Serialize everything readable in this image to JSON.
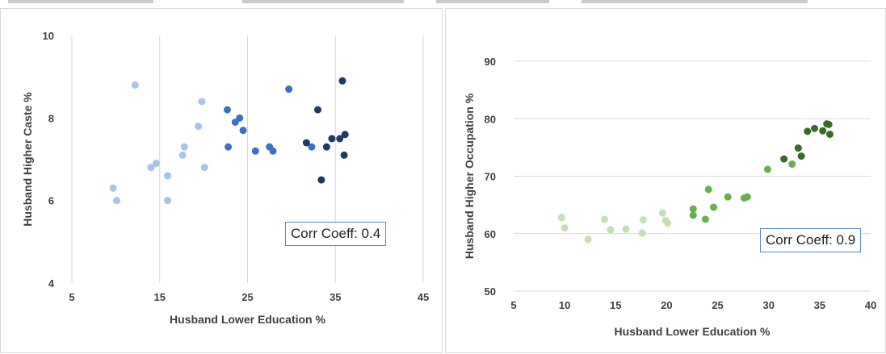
{
  "chart_data": [
    {
      "type": "scatter",
      "xlabel": "Husband Lower Education %",
      "ylabel": "Husband Higher Caste %",
      "xlim": [
        5,
        45
      ],
      "ylim": [
        4,
        10
      ],
      "xticks": [
        "5",
        "15",
        "25",
        "35",
        "45"
      ],
      "yticks": [
        "4",
        "6",
        "8",
        "10"
      ],
      "grid": "vertical",
      "annotation": "Corr Coeff: 0.4",
      "annotation_border": "#5b87c9",
      "series": [
        {
          "color": "#a9c4e9",
          "points": [
            [
              12.2,
              8.8
            ],
            [
              9.7,
              6.3
            ],
            [
              10.1,
              6.0
            ],
            [
              14.0,
              6.8
            ],
            [
              14.6,
              6.9
            ],
            [
              15.9,
              6.6
            ],
            [
              15.9,
              6.0
            ],
            [
              17.6,
              7.1
            ],
            [
              17.8,
              7.3
            ],
            [
              19.4,
              7.8
            ],
            [
              19.8,
              8.4
            ],
            [
              20.1,
              6.8
            ]
          ]
        },
        {
          "color": "#3d70c4",
          "points": [
            [
              22.7,
              8.2
            ],
            [
              22.8,
              7.3
            ],
            [
              23.6,
              7.9
            ],
            [
              24.1,
              8.0
            ],
            [
              24.5,
              7.7
            ],
            [
              25.9,
              7.2
            ],
            [
              27.5,
              7.3
            ],
            [
              27.9,
              7.2
            ],
            [
              29.7,
              8.7
            ],
            [
              32.3,
              7.3
            ]
          ]
        },
        {
          "color": "#1f3864",
          "points": [
            [
              31.7,
              7.4
            ],
            [
              33.0,
              8.2
            ],
            [
              33.4,
              6.5
            ],
            [
              34.0,
              7.3
            ],
            [
              34.6,
              7.5
            ],
            [
              35.5,
              7.5
            ],
            [
              35.8,
              8.9
            ],
            [
              36.0,
              7.1
            ],
            [
              36.1,
              7.6
            ]
          ]
        }
      ]
    },
    {
      "type": "scatter",
      "xlabel": "Husband Lower Education %",
      "ylabel": "Husband Higher Occupation %",
      "xlim": [
        5,
        40
      ],
      "ylim": [
        50,
        90
      ],
      "xticks": [
        "5",
        "10",
        "15",
        "20",
        "25",
        "30",
        "35",
        "40"
      ],
      "yticks": [
        "50",
        "60",
        "70",
        "80",
        "90"
      ],
      "grid": "horizontal",
      "annotation": "Corr Coeff: 0.9",
      "annotation_border": "#5b87c9",
      "series": [
        {
          "color": "#c5e0b3",
          "points": [
            [
              9.7,
              62.8
            ],
            [
              10.0,
              61.0
            ],
            [
              12.3,
              59.0
            ],
            [
              13.9,
              62.5
            ],
            [
              14.5,
              60.7
            ],
            [
              16.0,
              60.8
            ],
            [
              17.6,
              60.1
            ],
            [
              17.7,
              62.4
            ],
            [
              19.6,
              63.6
            ],
            [
              19.9,
              62.3
            ],
            [
              20.1,
              61.8
            ]
          ]
        },
        {
          "color": "#6ab04c",
          "points": [
            [
              22.6,
              63.2
            ],
            [
              22.6,
              64.3
            ],
            [
              23.8,
              62.5
            ],
            [
              24.1,
              67.7
            ],
            [
              24.6,
              64.6
            ],
            [
              26.0,
              66.4
            ],
            [
              27.6,
              66.2
            ],
            [
              27.9,
              66.4
            ],
            [
              29.9,
              71.2
            ],
            [
              32.3,
              72.1
            ]
          ]
        },
        {
          "color": "#3a6b24",
          "points": [
            [
              31.5,
              73.0
            ],
            [
              32.9,
              74.9
            ],
            [
              33.2,
              73.5
            ],
            [
              33.8,
              77.8
            ],
            [
              34.5,
              78.3
            ],
            [
              35.3,
              77.9
            ],
            [
              35.7,
              79.1
            ],
            [
              35.9,
              79.0
            ],
            [
              36.0,
              77.3
            ]
          ]
        }
      ]
    }
  ]
}
